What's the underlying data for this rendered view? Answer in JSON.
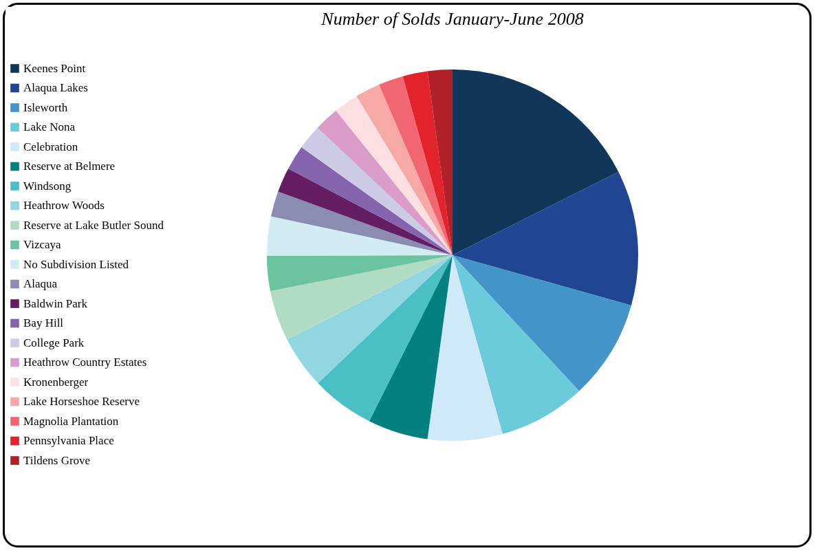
{
  "chart_data": {
    "type": "pie",
    "title": "Number of Solds January-June 2008",
    "categories": [
      "Keenes Point",
      "Alaqua Lakes",
      "Isleworth",
      "Lake Nona",
      "Celebration",
      "Reserve at Belmere",
      "Windsong",
      "Heathrow Woods",
      "Reserve at Lake Butler Sound",
      "Vizcaya",
      "No Subdivision Listed",
      "Alaqua",
      "Baldwin Park",
      "Bay Hill",
      "College Park",
      "Heathrow Country Estates",
      "Kronenberger",
      "Lake Horseshoe Reserve",
      "Magnolia Plantation",
      "Pennsylvania Place",
      "Tildens Grove"
    ],
    "values": [
      17.6,
      11.75,
      8.7,
      7.6,
      6.5,
      5.25,
      5.5,
      4.6,
      4.4,
      3.05,
      3.4,
      2.2,
      2.16,
      2.16,
      2.16,
      2.16,
      2.16,
      2.16,
      2.16,
      2.16,
      2.16
    ],
    "colors": [
      "#10365a",
      "#1f4593",
      "#4394c8",
      "#6ccbdb",
      "#cfe9f8",
      "#048080",
      "#4bc0c4",
      "#92d6e2",
      "#b1dcc4",
      "#6cc3a0",
      "#d3ecf3",
      "#8a8cb2",
      "#641c62",
      "#8464ac",
      "#cccce6",
      "#da9cc8",
      "#fde0e2",
      "#f7a9a8",
      "#f26671",
      "#e2232b",
      "#b22029"
    ],
    "legend": "left"
  }
}
